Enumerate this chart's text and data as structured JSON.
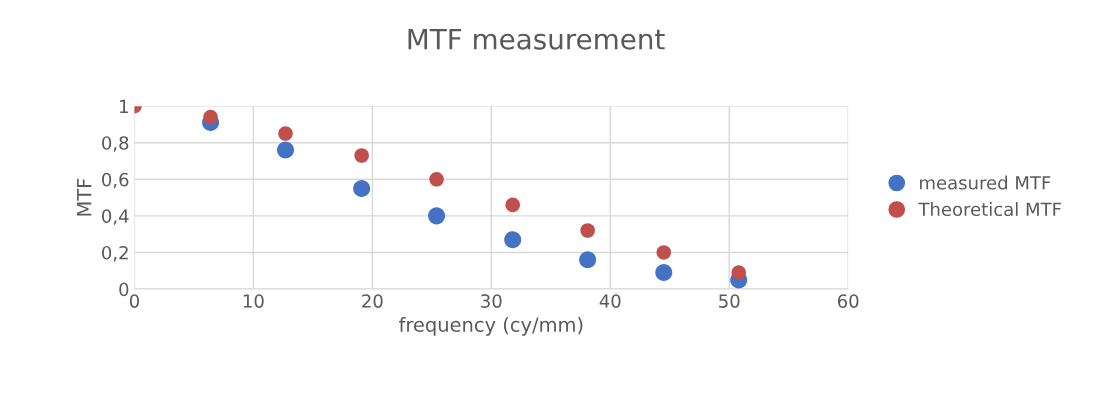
{
  "chart_data": {
    "type": "scatter",
    "title": "MTF measurement",
    "xlabel": "frequency (cy/mm)",
    "ylabel": "MTF",
    "x": [
      0,
      6.4,
      12.7,
      19.1,
      25.4,
      31.8,
      38.1,
      44.5,
      50.8
    ],
    "series": [
      {
        "name": "measured MTF",
        "color": "#4472c4",
        "values": [
          null,
          0.91,
          0.76,
          0.55,
          0.4,
          0.27,
          0.16,
          0.09,
          0.05
        ]
      },
      {
        "name": "Theoretical MTF",
        "color": "#c0504d",
        "values": [
          1,
          0.94,
          0.85,
          0.73,
          0.6,
          0.46,
          0.32,
          0.2,
          0.09
        ]
      }
    ],
    "xlim": [
      0,
      60
    ],
    "xticks": [
      0,
      10,
      20,
      30,
      40,
      50,
      60
    ],
    "ylim": [
      0,
      1
    ],
    "yticks": [
      0,
      {
        "value": 0.2,
        "label": "0,2"
      },
      {
        "value": 0.4,
        "label": "0,4"
      },
      {
        "value": 0.6,
        "label": "0,6"
      },
      {
        "value": 0.8,
        "label": "0,8"
      },
      1
    ],
    "grid": true,
    "legend": "right",
    "marker": "circle"
  }
}
